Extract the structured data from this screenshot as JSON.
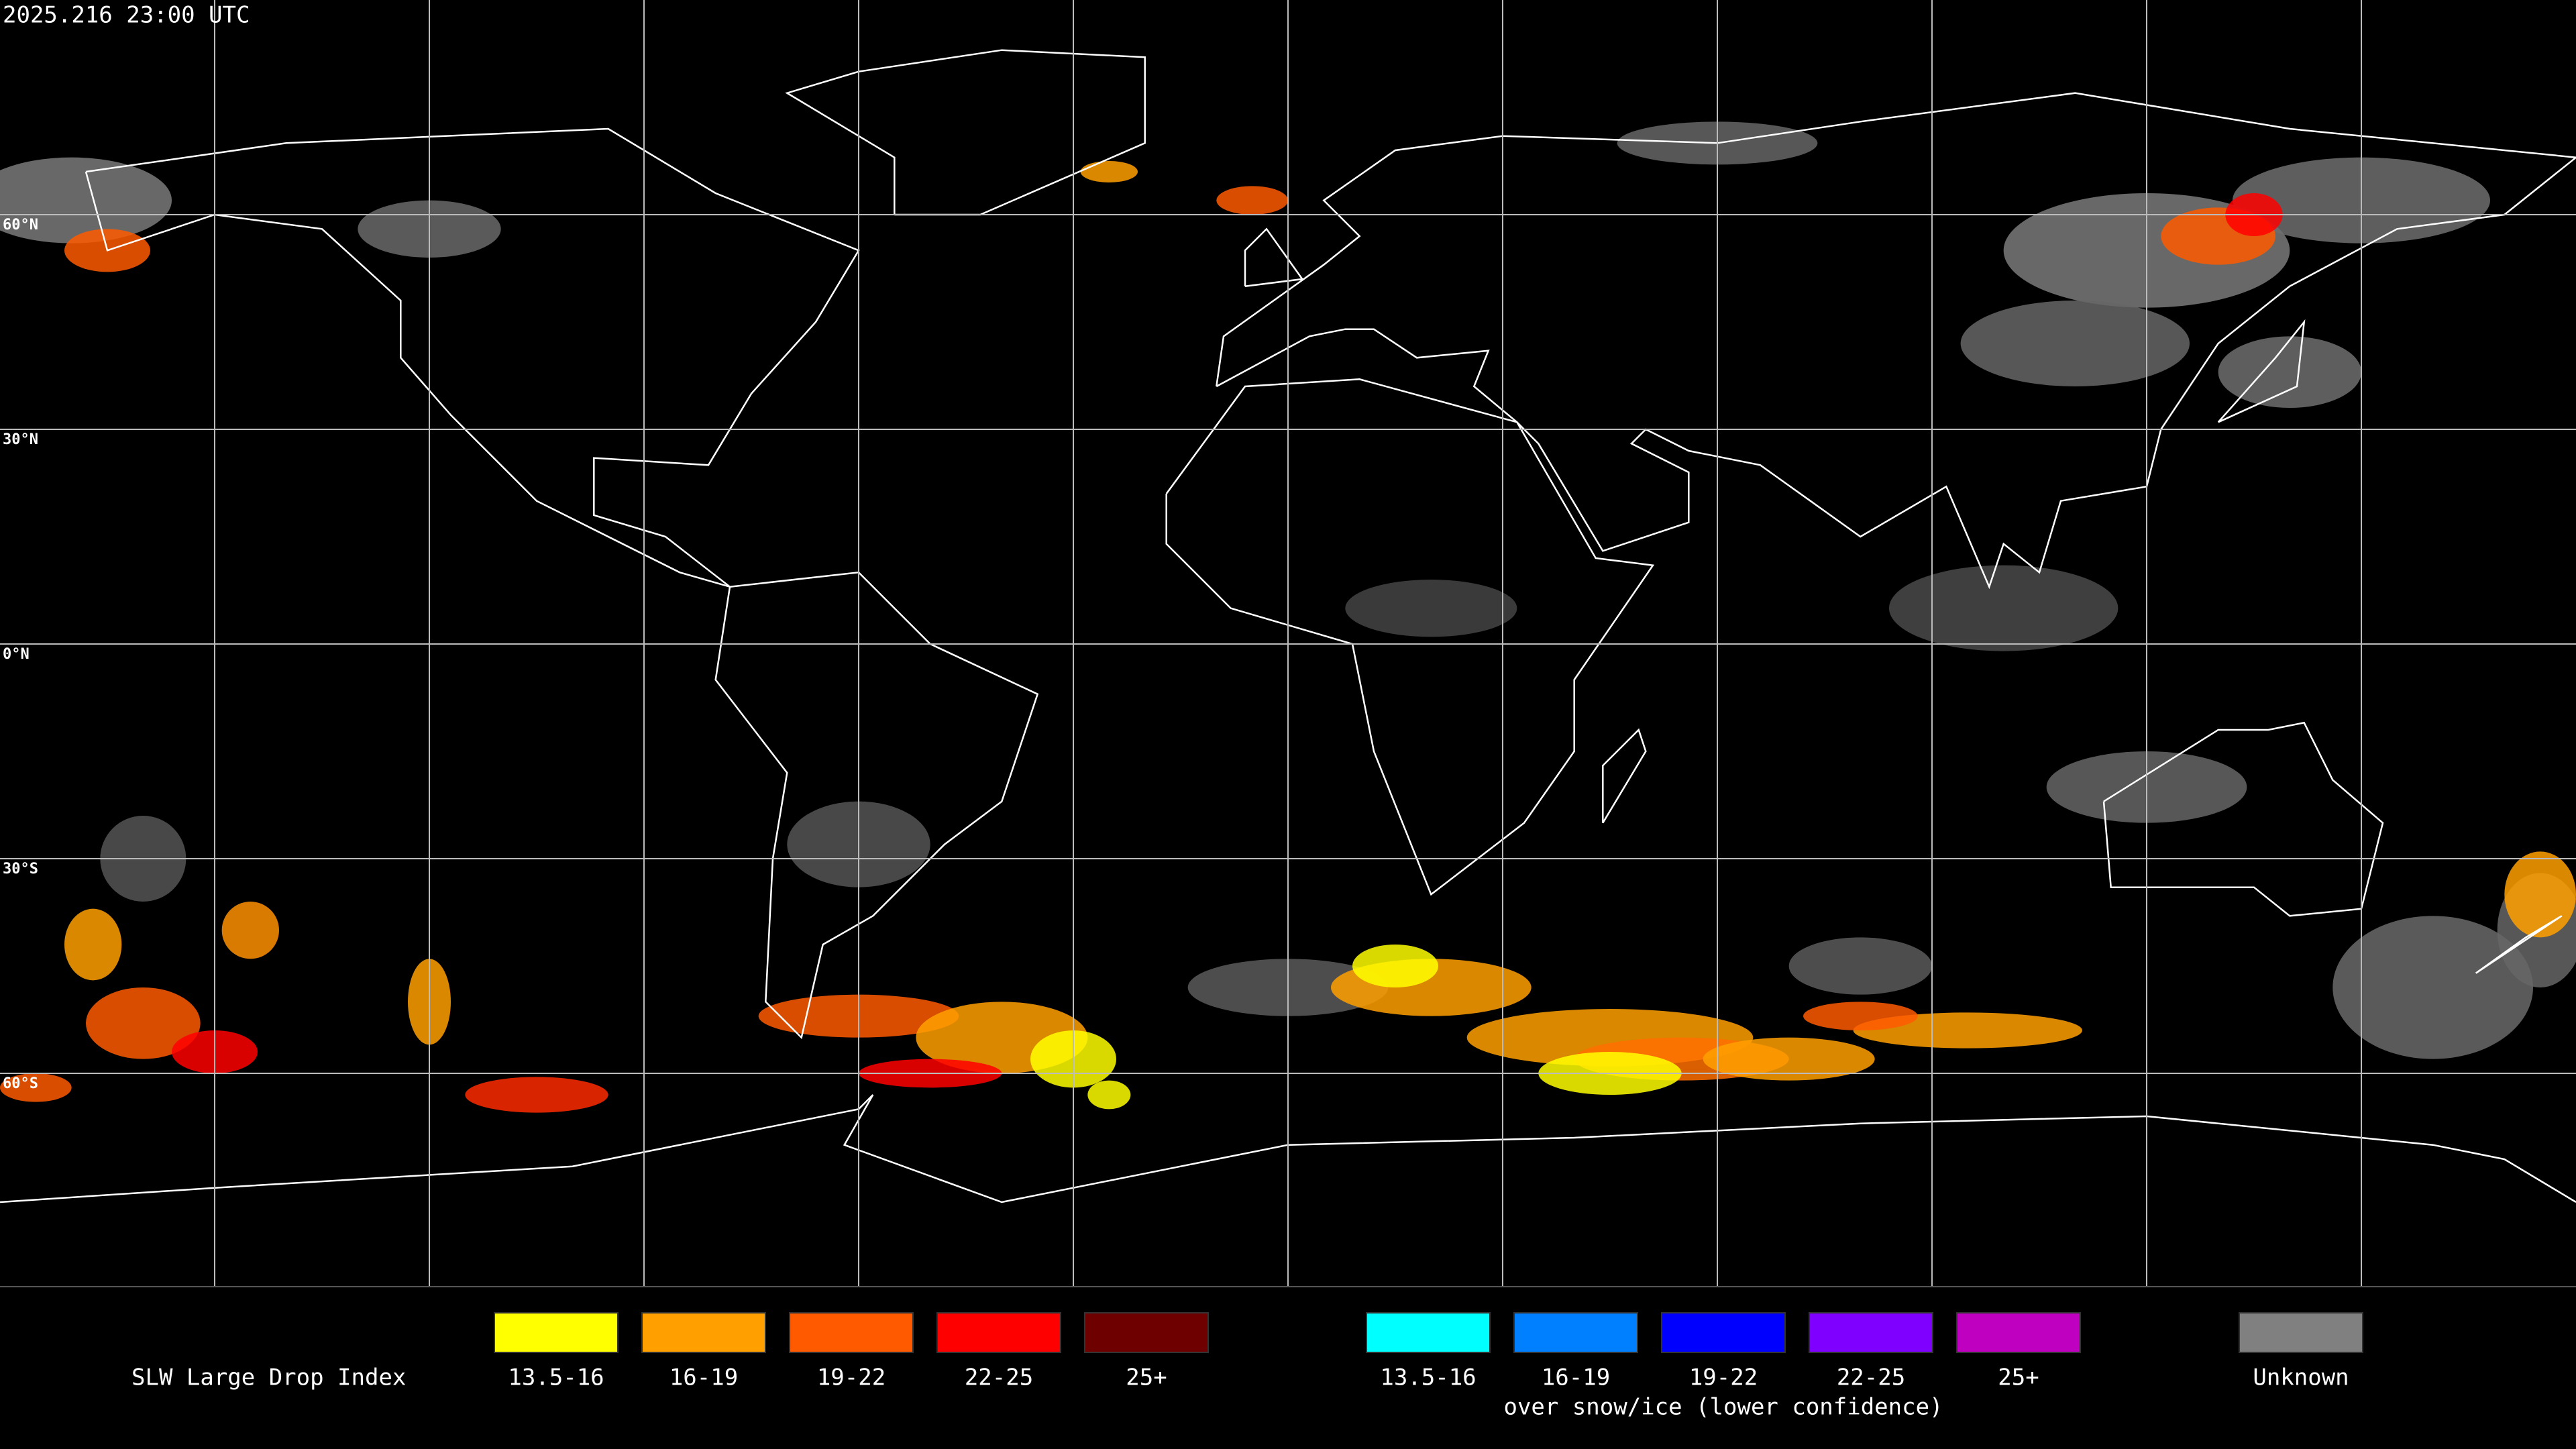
{
  "header": {
    "timestamp": "2025.216 23:00 UTC"
  },
  "map": {
    "latitude_labels": [
      "60°N",
      "30°N",
      "0°N",
      "30°S",
      "60°S"
    ]
  },
  "legend": {
    "title": "SLW Large Drop Index",
    "groups": [
      {
        "items": [
          {
            "label": "13.5-16",
            "color": "#ffff00"
          },
          {
            "label": "16-19",
            "color": "#ffa000"
          },
          {
            "label": "19-22",
            "color": "#ff5a00"
          },
          {
            "label": "22-25",
            "color": "#ff0000"
          },
          {
            "label": "25+",
            "color": "#6e0000"
          }
        ]
      },
      {
        "items": [
          {
            "label": "13.5-16",
            "color": "#00ffff"
          },
          {
            "label": "16-19",
            "color": "#0080ff"
          },
          {
            "label": "19-22",
            "color": "#0000ff"
          },
          {
            "label": "22-25",
            "color": "#8000ff"
          },
          {
            "label": "25+",
            "color": "#c000c0"
          }
        ],
        "caption": "over snow/ice (lower confidence)"
      },
      {
        "items": [
          {
            "label": "Unknown",
            "color": "#808080"
          }
        ]
      }
    ]
  }
}
